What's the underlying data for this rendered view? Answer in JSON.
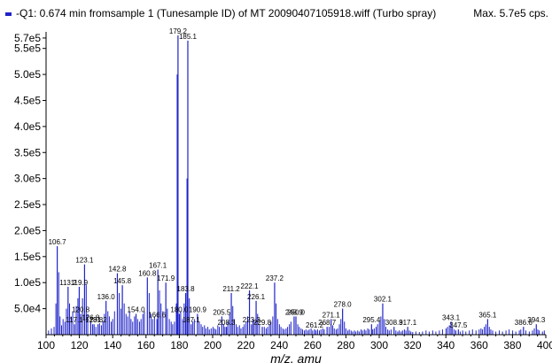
{
  "legend": {
    "label": "-Q1: 0.674 min fromsample 1 (Tunesample ID) of MT 20090407105918.wiff (Turbo spray)",
    "max_label": "Max. 5.7e5 cps.",
    "series_color": "#1f23c8"
  },
  "chart_data": {
    "type": "bar",
    "title": "",
    "xlabel": "m/z, amu",
    "ylabel": "",
    "xlim": [
      100,
      400
    ],
    "ylim": [
      0,
      575000
    ],
    "x_ticks": [
      100,
      120,
      140,
      160,
      180,
      200,
      220,
      240,
      260,
      280,
      300,
      320,
      340,
      360,
      380,
      400
    ],
    "y_ticks": [
      {
        "value": 50000,
        "label": "5.0e4"
      },
      {
        "value": 100000,
        "label": "1.0e5"
      },
      {
        "value": 150000,
        "label": "1.5e5"
      },
      {
        "value": 200000,
        "label": "2.0e5"
      },
      {
        "value": 250000,
        "label": "2.5e5"
      },
      {
        "value": 300000,
        "label": "3.0e5"
      },
      {
        "value": 350000,
        "label": "3.5e5"
      },
      {
        "value": 400000,
        "label": "4.0e5"
      },
      {
        "value": 450000,
        "label": "4.5e5"
      },
      {
        "value": 500000,
        "label": "5.0e5"
      },
      {
        "value": 550000,
        "label": "5.5e5"
      },
      {
        "value": 570000,
        "label": "5.7e5"
      }
    ],
    "labeled_peaks": [
      {
        "x": 106.7,
        "y": 170000,
        "label": "106.7"
      },
      {
        "x": 113.2,
        "y": 92000,
        "label": "113.2"
      },
      {
        "x": 117.1,
        "y": 20000,
        "label": "117.1"
      },
      {
        "x": 119.9,
        "y": 92000,
        "label": "119.9"
      },
      {
        "x": 120.8,
        "y": 40000,
        "label": "120.8"
      },
      {
        "x": 123.1,
        "y": 135000,
        "label": "123.1"
      },
      {
        "x": 126.8,
        "y": 25000,
        "label": "126.8"
      },
      {
        "x": 128.8,
        "y": 20000,
        "label": "128.8"
      },
      {
        "x": 131.2,
        "y": 20000,
        "label": "131.2"
      },
      {
        "x": 136.0,
        "y": 65000,
        "label": "136.0"
      },
      {
        "x": 142.8,
        "y": 118000,
        "label": "142.8"
      },
      {
        "x": 145.8,
        "y": 95000,
        "label": "145.8"
      },
      {
        "x": 154.0,
        "y": 40000,
        "label": "154.0"
      },
      {
        "x": 160.8,
        "y": 110000,
        "label": "160.8"
      },
      {
        "x": 166.6,
        "y": 30000,
        "label": "166.6"
      },
      {
        "x": 167.1,
        "y": 125000,
        "label": "167.1"
      },
      {
        "x": 171.9,
        "y": 100000,
        "label": "171.9"
      },
      {
        "x": 179.2,
        "y": 575000,
        "label": "179.2"
      },
      {
        "x": 180.0,
        "y": 40000,
        "label": "180.0"
      },
      {
        "x": 183.8,
        "y": 80000,
        "label": "183.8"
      },
      {
        "x": 185.1,
        "y": 565000,
        "label": "185.1"
      },
      {
        "x": 187.1,
        "y": 20000,
        "label": "187.1"
      },
      {
        "x": 190.9,
        "y": 40000,
        "label": "190.9"
      },
      {
        "x": 205.5,
        "y": 35000,
        "label": "205.5"
      },
      {
        "x": 208.3,
        "y": 15000,
        "label": "208.3"
      },
      {
        "x": 211.2,
        "y": 80000,
        "label": "211.2"
      },
      {
        "x": 222.1,
        "y": 85000,
        "label": "222.1"
      },
      {
        "x": 223.3,
        "y": 20000,
        "label": "223.3"
      },
      {
        "x": 226.1,
        "y": 65000,
        "label": "226.1"
      },
      {
        "x": 229.8,
        "y": 15000,
        "label": "229.8"
      },
      {
        "x": 237.2,
        "y": 100000,
        "label": "237.2"
      },
      {
        "x": 248.9,
        "y": 35000,
        "label": "248.9"
      },
      {
        "x": 250.0,
        "y": 35000,
        "label": "250.0"
      },
      {
        "x": 261.2,
        "y": 10000,
        "label": "261.2"
      },
      {
        "x": 268.7,
        "y": 15000,
        "label": "268.7"
      },
      {
        "x": 271.1,
        "y": 30000,
        "label": "271.1"
      },
      {
        "x": 278.0,
        "y": 50000,
        "label": "278.0"
      },
      {
        "x": 295.4,
        "y": 20000,
        "label": "295.4"
      },
      {
        "x": 302.1,
        "y": 60000,
        "label": "302.1"
      },
      {
        "x": 308.9,
        "y": 15000,
        "label": "308.9"
      },
      {
        "x": 317.1,
        "y": 15000,
        "label": "317.1"
      },
      {
        "x": 343.1,
        "y": 25000,
        "label": "343.1"
      },
      {
        "x": 347.5,
        "y": 10000,
        "label": "347.5"
      },
      {
        "x": 365.1,
        "y": 30000,
        "label": "365.1"
      },
      {
        "x": 386.6,
        "y": 15000,
        "label": "386.6"
      },
      {
        "x": 394.3,
        "y": 20000,
        "label": "394.3"
      }
    ],
    "minor_peaks": [
      {
        "x": 101.5,
        "y": 8000
      },
      {
        "x": 103.2,
        "y": 12000
      },
      {
        "x": 104.8,
        "y": 15000
      },
      {
        "x": 105.9,
        "y": 60000
      },
      {
        "x": 107.6,
        "y": 120000
      },
      {
        "x": 108.4,
        "y": 35000
      },
      {
        "x": 109.3,
        "y": 18000
      },
      {
        "x": 110.2,
        "y": 30000
      },
      {
        "x": 111.3,
        "y": 25000
      },
      {
        "x": 112.2,
        "y": 50000
      },
      {
        "x": 114.1,
        "y": 60000
      },
      {
        "x": 115.0,
        "y": 35000
      },
      {
        "x": 116.0,
        "y": 45000
      },
      {
        "x": 118.1,
        "y": 55000
      },
      {
        "x": 119.1,
        "y": 70000
      },
      {
        "x": 121.9,
        "y": 70000
      },
      {
        "x": 124.1,
        "y": 95000
      },
      {
        "x": 125.0,
        "y": 40000
      },
      {
        "x": 127.9,
        "y": 20000
      },
      {
        "x": 129.9,
        "y": 15000
      },
      {
        "x": 132.1,
        "y": 22000
      },
      {
        "x": 133.2,
        "y": 18000
      },
      {
        "x": 134.1,
        "y": 25000
      },
      {
        "x": 135.0,
        "y": 40000
      },
      {
        "x": 137.1,
        "y": 45000
      },
      {
        "x": 138.0,
        "y": 35000
      },
      {
        "x": 139.1,
        "y": 25000
      },
      {
        "x": 140.0,
        "y": 30000
      },
      {
        "x": 141.1,
        "y": 45000
      },
      {
        "x": 143.9,
        "y": 80000
      },
      {
        "x": 144.9,
        "y": 50000
      },
      {
        "x": 146.9,
        "y": 60000
      },
      {
        "x": 148.0,
        "y": 40000
      },
      {
        "x": 149.0,
        "y": 35000
      },
      {
        "x": 150.1,
        "y": 45000
      },
      {
        "x": 151.0,
        "y": 30000
      },
      {
        "x": 152.0,
        "y": 25000
      },
      {
        "x": 153.1,
        "y": 35000
      },
      {
        "x": 155.0,
        "y": 30000
      },
      {
        "x": 156.1,
        "y": 25000
      },
      {
        "x": 157.0,
        "y": 30000
      },
      {
        "x": 158.1,
        "y": 40000
      },
      {
        "x": 159.0,
        "y": 45000
      },
      {
        "x": 161.9,
        "y": 80000
      },
      {
        "x": 163.0,
        "y": 40000
      },
      {
        "x": 164.0,
        "y": 30000
      },
      {
        "x": 165.1,
        "y": 35000
      },
      {
        "x": 168.1,
        "y": 85000
      },
      {
        "x": 169.0,
        "y": 60000
      },
      {
        "x": 170.1,
        "y": 45000
      },
      {
        "x": 172.8,
        "y": 50000
      },
      {
        "x": 174.0,
        "y": 30000
      },
      {
        "x": 175.1,
        "y": 25000
      },
      {
        "x": 176.0,
        "y": 20000
      },
      {
        "x": 177.1,
        "y": 25000
      },
      {
        "x": 178.2,
        "y": 60000
      },
      {
        "x": 178.7,
        "y": 500000
      },
      {
        "x": 180.8,
        "y": 45000
      },
      {
        "x": 182.0,
        "y": 30000
      },
      {
        "x": 182.9,
        "y": 60000
      },
      {
        "x": 184.6,
        "y": 300000
      },
      {
        "x": 186.0,
        "y": 70000
      },
      {
        "x": 188.1,
        "y": 25000
      },
      {
        "x": 189.0,
        "y": 30000
      },
      {
        "x": 192.0,
        "y": 25000
      },
      {
        "x": 193.1,
        "y": 20000
      },
      {
        "x": 194.0,
        "y": 15000
      },
      {
        "x": 195.1,
        "y": 18000
      },
      {
        "x": 196.0,
        "y": 12000
      },
      {
        "x": 197.1,
        "y": 15000
      },
      {
        "x": 198.0,
        "y": 10000
      },
      {
        "x": 199.1,
        "y": 12000
      },
      {
        "x": 200.2,
        "y": 15000
      },
      {
        "x": 201.1,
        "y": 12000
      },
      {
        "x": 202.0,
        "y": 10000
      },
      {
        "x": 203.1,
        "y": 18000
      },
      {
        "x": 204.0,
        "y": 15000
      },
      {
        "x": 206.6,
        "y": 20000
      },
      {
        "x": 207.4,
        "y": 15000
      },
      {
        "x": 209.1,
        "y": 25000
      },
      {
        "x": 210.2,
        "y": 40000
      },
      {
        "x": 212.1,
        "y": 55000
      },
      {
        "x": 213.0,
        "y": 30000
      },
      {
        "x": 214.1,
        "y": 20000
      },
      {
        "x": 215.0,
        "y": 15000
      },
      {
        "x": 216.1,
        "y": 18000
      },
      {
        "x": 217.0,
        "y": 12000
      },
      {
        "x": 218.1,
        "y": 15000
      },
      {
        "x": 219.0,
        "y": 20000
      },
      {
        "x": 220.1,
        "y": 25000
      },
      {
        "x": 221.0,
        "y": 35000
      },
      {
        "x": 224.2,
        "y": 30000
      },
      {
        "x": 225.0,
        "y": 25000
      },
      {
        "x": 227.0,
        "y": 40000
      },
      {
        "x": 228.1,
        "y": 20000
      },
      {
        "x": 231.0,
        "y": 15000
      },
      {
        "x": 232.1,
        "y": 12000
      },
      {
        "x": 233.0,
        "y": 15000
      },
      {
        "x": 234.1,
        "y": 20000
      },
      {
        "x": 235.0,
        "y": 25000
      },
      {
        "x": 236.1,
        "y": 35000
      },
      {
        "x": 238.1,
        "y": 60000
      },
      {
        "x": 239.0,
        "y": 30000
      },
      {
        "x": 240.1,
        "y": 20000
      },
      {
        "x": 241.0,
        "y": 15000
      },
      {
        "x": 242.1,
        "y": 12000
      },
      {
        "x": 243.0,
        "y": 10000
      },
      {
        "x": 244.1,
        "y": 12000
      },
      {
        "x": 245.0,
        "y": 15000
      },
      {
        "x": 246.1,
        "y": 20000
      },
      {
        "x": 247.0,
        "y": 25000
      },
      {
        "x": 251.1,
        "y": 20000
      },
      {
        "x": 252.0,
        "y": 15000
      },
      {
        "x": 253.1,
        "y": 12000
      },
      {
        "x": 254.0,
        "y": 10000
      },
      {
        "x": 255.1,
        "y": 8000
      },
      {
        "x": 256.0,
        "y": 10000
      },
      {
        "x": 257.1,
        "y": 8000
      },
      {
        "x": 258.0,
        "y": 10000
      },
      {
        "x": 259.1,
        "y": 12000
      },
      {
        "x": 260.0,
        "y": 8000
      },
      {
        "x": 262.1,
        "y": 8000
      },
      {
        "x": 263.0,
        "y": 10000
      },
      {
        "x": 264.1,
        "y": 8000
      },
      {
        "x": 265.0,
        "y": 10000
      },
      {
        "x": 266.1,
        "y": 12000
      },
      {
        "x": 267.0,
        "y": 10000
      },
      {
        "x": 269.9,
        "y": 15000
      },
      {
        "x": 272.1,
        "y": 18000
      },
      {
        "x": 273.0,
        "y": 12000
      },
      {
        "x": 274.1,
        "y": 10000
      },
      {
        "x": 275.0,
        "y": 12000
      },
      {
        "x": 276.1,
        "y": 20000
      },
      {
        "x": 277.0,
        "y": 30000
      },
      {
        "x": 279.1,
        "y": 25000
      },
      {
        "x": 280.0,
        "y": 12000
      },
      {
        "x": 281.1,
        "y": 8000
      },
      {
        "x": 282.0,
        "y": 10000
      },
      {
        "x": 283.1,
        "y": 8000
      },
      {
        "x": 284.0,
        "y": 6000
      },
      {
        "x": 285.1,
        "y": 8000
      },
      {
        "x": 286.0,
        "y": 6000
      },
      {
        "x": 287.1,
        "y": 8000
      },
      {
        "x": 288.0,
        "y": 6000
      },
      {
        "x": 289.1,
        "y": 10000
      },
      {
        "x": 290.0,
        "y": 8000
      },
      {
        "x": 291.1,
        "y": 10000
      },
      {
        "x": 292.0,
        "y": 8000
      },
      {
        "x": 293.1,
        "y": 12000
      },
      {
        "x": 294.0,
        "y": 10000
      },
      {
        "x": 296.1,
        "y": 10000
      },
      {
        "x": 297.0,
        "y": 12000
      },
      {
        "x": 298.1,
        "y": 15000
      },
      {
        "x": 299.0,
        "y": 20000
      },
      {
        "x": 300.1,
        "y": 25000
      },
      {
        "x": 301.0,
        "y": 35000
      },
      {
        "x": 303.1,
        "y": 30000
      },
      {
        "x": 304.0,
        "y": 15000
      },
      {
        "x": 305.1,
        "y": 10000
      },
      {
        "x": 306.0,
        "y": 8000
      },
      {
        "x": 307.1,
        "y": 10000
      },
      {
        "x": 310.0,
        "y": 8000
      },
      {
        "x": 311.1,
        "y": 6000
      },
      {
        "x": 312.0,
        "y": 8000
      },
      {
        "x": 313.1,
        "y": 6000
      },
      {
        "x": 314.0,
        "y": 8000
      },
      {
        "x": 315.1,
        "y": 10000
      },
      {
        "x": 316.0,
        "y": 8000
      },
      {
        "x": 318.1,
        "y": 8000
      },
      {
        "x": 319.0,
        "y": 6000
      },
      {
        "x": 320.1,
        "y": 5000
      },
      {
        "x": 322.0,
        "y": 6000
      },
      {
        "x": 324.1,
        "y": 5000
      },
      {
        "x": 326.0,
        "y": 6000
      },
      {
        "x": 328.1,
        "y": 8000
      },
      {
        "x": 330.0,
        "y": 6000
      },
      {
        "x": 332.1,
        "y": 8000
      },
      {
        "x": 334.0,
        "y": 6000
      },
      {
        "x": 336.1,
        "y": 8000
      },
      {
        "x": 338.0,
        "y": 10000
      },
      {
        "x": 340.1,
        "y": 12000
      },
      {
        "x": 341.0,
        "y": 15000
      },
      {
        "x": 342.1,
        "y": 18000
      },
      {
        "x": 344.0,
        "y": 15000
      },
      {
        "x": 345.1,
        "y": 10000
      },
      {
        "x": 346.0,
        "y": 8000
      },
      {
        "x": 348.6,
        "y": 6000
      },
      {
        "x": 350.1,
        "y": 8000
      },
      {
        "x": 352.0,
        "y": 6000
      },
      {
        "x": 354.1,
        "y": 8000
      },
      {
        "x": 356.0,
        "y": 10000
      },
      {
        "x": 358.1,
        "y": 8000
      },
      {
        "x": 360.0,
        "y": 10000
      },
      {
        "x": 361.1,
        "y": 12000
      },
      {
        "x": 362.0,
        "y": 10000
      },
      {
        "x": 363.1,
        "y": 15000
      },
      {
        "x": 364.0,
        "y": 20000
      },
      {
        "x": 366.1,
        "y": 15000
      },
      {
        "x": 367.0,
        "y": 10000
      },
      {
        "x": 368.1,
        "y": 8000
      },
      {
        "x": 370.0,
        "y": 6000
      },
      {
        "x": 372.1,
        "y": 8000
      },
      {
        "x": 374.0,
        "y": 6000
      },
      {
        "x": 376.1,
        "y": 8000
      },
      {
        "x": 378.0,
        "y": 10000
      },
      {
        "x": 380.1,
        "y": 8000
      },
      {
        "x": 382.0,
        "y": 6000
      },
      {
        "x": 384.1,
        "y": 8000
      },
      {
        "x": 385.0,
        "y": 10000
      },
      {
        "x": 388.0,
        "y": 8000
      },
      {
        "x": 390.1,
        "y": 6000
      },
      {
        "x": 392.0,
        "y": 8000
      },
      {
        "x": 393.1,
        "y": 12000
      },
      {
        "x": 395.2,
        "y": 10000
      },
      {
        "x": 396.1,
        "y": 8000
      },
      {
        "x": 398.0,
        "y": 6000
      },
      {
        "x": 399.1,
        "y": 8000
      }
    ]
  }
}
